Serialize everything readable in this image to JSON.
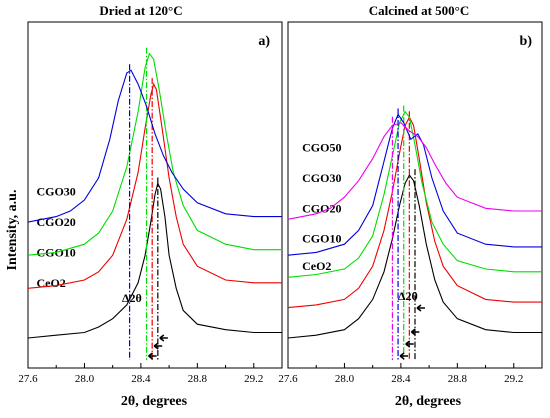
{
  "figure": {
    "ylabel": "Intensity, a.u."
  },
  "chart_data": [
    {
      "type": "line",
      "panel_label": "a)",
      "title": "Dried at 120°C",
      "xlabel": "2θ, degrees",
      "ylabel": "Intensity, a.u.",
      "xlim": [
        27.6,
        29.4
      ],
      "ylim": [
        0,
        1
      ],
      "xticks": [
        "27.6",
        "28.0",
        "28.4",
        "28.8",
        "29.2"
      ],
      "annotation": "Δ2θ",
      "series": [
        {
          "name": "CeO2",
          "color": "#000000",
          "label_at": [
            27.66,
            0.2
          ],
          "peak_line": 28.52,
          "offset": 0.0,
          "points": [
            [
              27.6,
              0.0
            ],
            [
              27.8,
              0.01
            ],
            [
              28.0,
              0.02
            ],
            [
              28.1,
              0.04
            ],
            [
              28.2,
              0.07
            ],
            [
              28.3,
              0.12
            ],
            [
              28.38,
              0.2
            ],
            [
              28.43,
              0.3
            ],
            [
              28.47,
              0.42
            ],
            [
              28.5,
              0.52
            ],
            [
              28.52,
              0.56
            ],
            [
              28.54,
              0.54
            ],
            [
              28.57,
              0.44
            ],
            [
              28.6,
              0.3
            ],
            [
              28.65,
              0.18
            ],
            [
              28.7,
              0.1
            ],
            [
              28.8,
              0.05
            ],
            [
              29.0,
              0.03
            ],
            [
              29.2,
              0.02
            ],
            [
              29.4,
              0.02
            ]
          ]
        },
        {
          "name": "CGO10",
          "color": "#ee0000",
          "label_at": [
            27.66,
            0.31
          ],
          "peak_line": 28.48,
          "offset": 0.18,
          "points": [
            [
              27.6,
              0.0
            ],
            [
              27.8,
              0.01
            ],
            [
              28.0,
              0.03
            ],
            [
              28.1,
              0.06
            ],
            [
              28.2,
              0.12
            ],
            [
              28.3,
              0.25
            ],
            [
              28.38,
              0.42
            ],
            [
              28.43,
              0.58
            ],
            [
              28.47,
              0.7
            ],
            [
              28.49,
              0.74
            ],
            [
              28.51,
              0.72
            ],
            [
              28.55,
              0.58
            ],
            [
              28.6,
              0.4
            ],
            [
              28.65,
              0.26
            ],
            [
              28.7,
              0.16
            ],
            [
              28.8,
              0.08
            ],
            [
              29.0,
              0.03
            ],
            [
              29.2,
              0.02
            ],
            [
              29.4,
              0.02
            ]
          ]
        },
        {
          "name": "CGO20",
          "color": "#00dd00",
          "label_at": [
            27.66,
            0.42
          ],
          "peak_line": 28.44,
          "offset": 0.3,
          "points": [
            [
              27.6,
              0.0
            ],
            [
              27.8,
              0.01
            ],
            [
              28.0,
              0.04
            ],
            [
              28.1,
              0.08
            ],
            [
              28.2,
              0.16
            ],
            [
              28.3,
              0.32
            ],
            [
              28.38,
              0.52
            ],
            [
              28.43,
              0.68
            ],
            [
              28.46,
              0.73
            ],
            [
              28.49,
              0.71
            ],
            [
              28.53,
              0.6
            ],
            [
              28.58,
              0.44
            ],
            [
              28.63,
              0.3
            ],
            [
              28.7,
              0.18
            ],
            [
              28.8,
              0.09
            ],
            [
              29.0,
              0.04
            ],
            [
              29.2,
              0.02
            ],
            [
              29.4,
              0.02
            ]
          ]
        },
        {
          "name": "CGO30",
          "color": "#0000dd",
          "label_at": [
            27.66,
            0.53
          ],
          "peak_line": 28.32,
          "offset": 0.42,
          "points": [
            [
              27.6,
              0.0
            ],
            [
              27.8,
              0.02
            ],
            [
              27.9,
              0.04
            ],
            [
              28.0,
              0.08
            ],
            [
              28.1,
              0.16
            ],
            [
              28.18,
              0.3
            ],
            [
              28.24,
              0.44
            ],
            [
              28.3,
              0.54
            ],
            [
              28.33,
              0.55
            ],
            [
              28.38,
              0.5
            ],
            [
              28.44,
              0.42
            ],
            [
              28.5,
              0.32
            ],
            [
              28.56,
              0.24
            ],
            [
              28.62,
              0.18
            ],
            [
              28.7,
              0.12
            ],
            [
              28.8,
              0.07
            ],
            [
              29.0,
              0.03
            ],
            [
              29.2,
              0.02
            ],
            [
              29.4,
              0.02
            ]
          ]
        }
      ]
    },
    {
      "type": "line",
      "panel_label": "b)",
      "title": "Calcined at 500°C",
      "xlabel": "2θ, degrees",
      "ylabel": "",
      "xlim": [
        27.6,
        29.4
      ],
      "ylim": [
        0,
        1
      ],
      "xticks": [
        "27.6",
        "28.0",
        "28.4",
        "28.8",
        "29.2"
      ],
      "annotation": "Δ2θ",
      "series": [
        {
          "name": "CeO2",
          "color": "#000000",
          "label_at": [
            27.7,
            0.26
          ],
          "peak_line": 28.5,
          "offset": 0.0,
          "points": [
            [
              27.6,
              0.0
            ],
            [
              27.8,
              0.01
            ],
            [
              28.0,
              0.03
            ],
            [
              28.1,
              0.07
            ],
            [
              28.2,
              0.14
            ],
            [
              28.28,
              0.24
            ],
            [
              28.34,
              0.36
            ],
            [
              28.39,
              0.48
            ],
            [
              28.43,
              0.56
            ],
            [
              28.46,
              0.59
            ],
            [
              28.49,
              0.57
            ],
            [
              28.53,
              0.48
            ],
            [
              28.58,
              0.34
            ],
            [
              28.64,
              0.21
            ],
            [
              28.7,
              0.13
            ],
            [
              28.8,
              0.07
            ],
            [
              29.0,
              0.03
            ],
            [
              29.2,
              0.02
            ],
            [
              29.4,
              0.02
            ]
          ]
        },
        {
          "name": "CGO10",
          "color": "#ee0000",
          "label_at": [
            27.7,
            0.36
          ],
          "peak_line": 28.46,
          "offset": 0.11,
          "points": [
            [
              27.6,
              0.0
            ],
            [
              27.8,
              0.01
            ],
            [
              28.0,
              0.03
            ],
            [
              28.1,
              0.07
            ],
            [
              28.2,
              0.15
            ],
            [
              28.28,
              0.28
            ],
            [
              28.34,
              0.42
            ],
            [
              28.39,
              0.56
            ],
            [
              28.43,
              0.66
            ],
            [
              28.46,
              0.69
            ],
            [
              28.49,
              0.66
            ],
            [
              28.53,
              0.54
            ],
            [
              28.58,
              0.38
            ],
            [
              28.64,
              0.24
            ],
            [
              28.7,
              0.15
            ],
            [
              28.8,
              0.08
            ],
            [
              29.0,
              0.03
            ],
            [
              29.2,
              0.02
            ],
            [
              29.4,
              0.02
            ]
          ]
        },
        {
          "name": "CGO20",
          "color": "#00dd00",
          "label_at": [
            27.7,
            0.47
          ],
          "peak_line": 28.42,
          "offset": 0.22,
          "points": [
            [
              27.6,
              0.0
            ],
            [
              27.8,
              0.01
            ],
            [
              28.0,
              0.03
            ],
            [
              28.1,
              0.07
            ],
            [
              28.2,
              0.15
            ],
            [
              28.28,
              0.3
            ],
            [
              28.34,
              0.44
            ],
            [
              28.39,
              0.56
            ],
            [
              28.43,
              0.6
            ],
            [
              28.46,
              0.58
            ],
            [
              28.5,
              0.48
            ],
            [
              28.55,
              0.34
            ],
            [
              28.62,
              0.2
            ],
            [
              28.7,
              0.12
            ],
            [
              28.8,
              0.06
            ],
            [
              29.0,
              0.03
            ],
            [
              29.2,
              0.02
            ],
            [
              29.4,
              0.02
            ]
          ]
        },
        {
          "name": "CGO30",
          "color": "#0000dd",
          "label_at": [
            27.7,
            0.58
          ],
          "peak_line": 28.38,
          "offset": 0.3,
          "points": [
            [
              27.6,
              0.0
            ],
            [
              27.8,
              0.01
            ],
            [
              28.0,
              0.04
            ],
            [
              28.1,
              0.09
            ],
            [
              28.2,
              0.18
            ],
            [
              28.28,
              0.34
            ],
            [
              28.34,
              0.46
            ],
            [
              28.38,
              0.51
            ],
            [
              28.42,
              0.48
            ],
            [
              28.47,
              0.42
            ],
            [
              28.52,
              0.44
            ],
            [
              28.56,
              0.4
            ],
            [
              28.62,
              0.28
            ],
            [
              28.7,
              0.16
            ],
            [
              28.8,
              0.08
            ],
            [
              29.0,
              0.04
            ],
            [
              29.2,
              0.03
            ],
            [
              29.4,
              0.03
            ]
          ]
        },
        {
          "name": "CGO50",
          "color": "#ee00ee",
          "label_at": [
            27.7,
            0.69
          ],
          "peak_line": 28.34,
          "offset": 0.43,
          "points": [
            [
              27.6,
              0.0
            ],
            [
              27.8,
              0.02
            ],
            [
              27.9,
              0.04
            ],
            [
              28.0,
              0.08
            ],
            [
              28.1,
              0.14
            ],
            [
              28.2,
              0.22
            ],
            [
              28.28,
              0.3
            ],
            [
              28.34,
              0.34
            ],
            [
              28.4,
              0.35
            ],
            [
              28.46,
              0.32
            ],
            [
              28.52,
              0.3
            ],
            [
              28.58,
              0.26
            ],
            [
              28.64,
              0.2
            ],
            [
              28.72,
              0.13
            ],
            [
              28.8,
              0.08
            ],
            [
              29.0,
              0.04
            ],
            [
              29.2,
              0.03
            ],
            [
              29.4,
              0.03
            ]
          ]
        }
      ]
    }
  ]
}
